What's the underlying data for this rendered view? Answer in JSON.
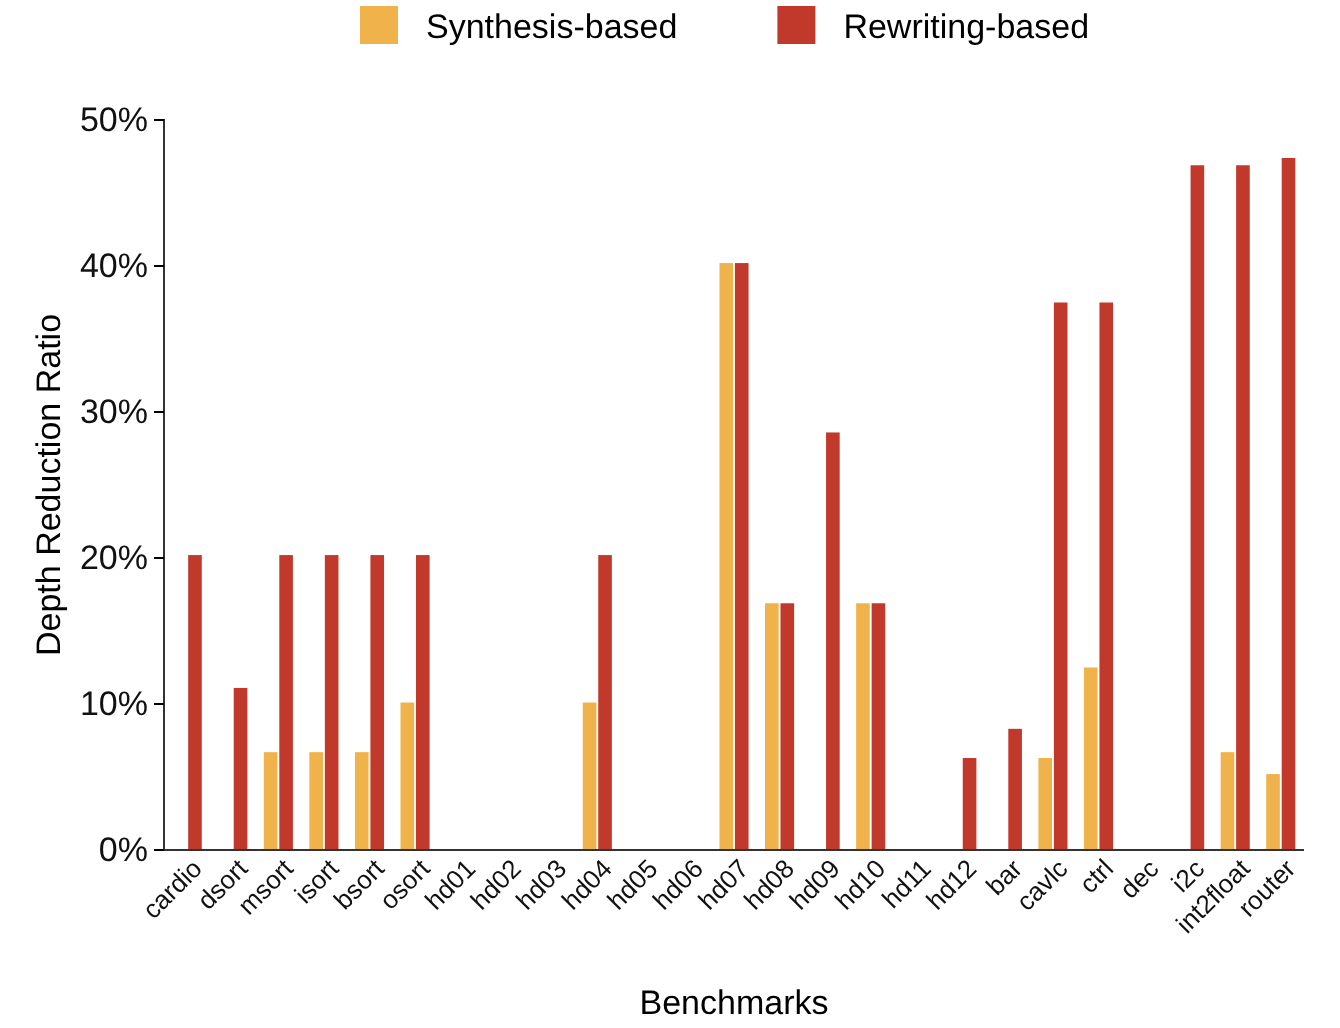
{
  "chart_data": {
    "type": "bar",
    "xlabel": "Benchmarks",
    "ylabel": "Depth Reduction Ratio",
    "categories": [
      "cardio",
      "dsort",
      "msort",
      "isort",
      "bsort",
      "osort",
      "hd01",
      "hd02",
      "hd03",
      "hd04",
      "hd05",
      "hd06",
      "hd07",
      "hd08",
      "hd09",
      "hd10",
      "hd11",
      "hd12",
      "bar",
      "cavlc",
      "ctrl",
      "dec",
      "i2c",
      "int2float",
      "router"
    ],
    "series": [
      {
        "name": "Synthesis-based",
        "color": "#f0b24a",
        "values": [
          0,
          0,
          6.7,
          6.7,
          6.7,
          10.1,
          0,
          0,
          0,
          10.1,
          0,
          0,
          40.2,
          16.9,
          0,
          16.9,
          0,
          0,
          0,
          6.3,
          12.5,
          0,
          0,
          6.7,
          5.2
        ]
      },
      {
        "name": "Rewriting-based",
        "color": "#c0392b",
        "values": [
          20.2,
          11.1,
          20.2,
          20.2,
          20.2,
          20.2,
          0,
          0,
          0,
          20.2,
          0,
          0,
          40.2,
          16.9,
          28.6,
          16.9,
          0,
          6.3,
          8.3,
          37.5,
          37.5,
          0,
          46.9,
          46.9,
          47.4
        ]
      }
    ],
    "ylim": [
      0,
      50
    ],
    "yticks": [
      {
        "value": 0,
        "label": "0%"
      },
      {
        "value": 10,
        "label": "10%"
      },
      {
        "value": 20,
        "label": "20%"
      },
      {
        "value": 30,
        "label": "30%"
      },
      {
        "value": 40,
        "label": "40%"
      },
      {
        "value": 50,
        "label": "50%"
      }
    ],
    "grid": false,
    "legend": "top"
  }
}
